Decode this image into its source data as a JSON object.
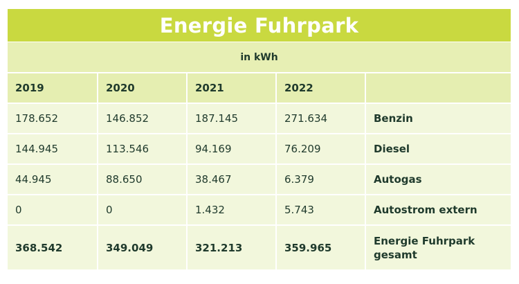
{
  "title": "Energie Fuhrpark",
  "unit": "in kWh",
  "columns": [
    "2019",
    "2020",
    "2021",
    "2022",
    ""
  ],
  "rows": [
    {
      "values": [
        "178.652",
        "146.852",
        "187.145",
        "271.634"
      ],
      "label": "Benzin"
    },
    {
      "values": [
        "144.945",
        "113.546",
        "94.169",
        "76.209"
      ],
      "label": "Diesel"
    },
    {
      "values": [
        "44.945",
        "88.650",
        "38.467",
        "6.379"
      ],
      "label": "Autogas"
    },
    {
      "values": [
        "0",
        "0",
        "1.432",
        "5.743"
      ],
      "label": "Autostrom extern"
    },
    {
      "values": [
        "368.542",
        "349.049",
        "321.213",
        "359.965"
      ],
      "label": "Energie Fuhrpark gesamt"
    }
  ],
  "colors": {
    "title_bg": "#c9d940",
    "header_bg": "#e5eeb1",
    "row_bg": "#f2f7dc",
    "text": "#1f3a2c"
  }
}
